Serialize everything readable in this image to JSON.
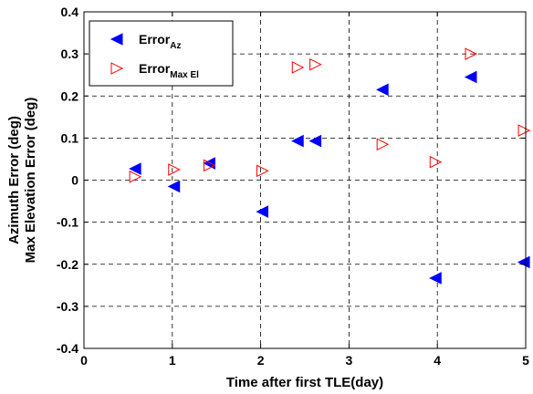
{
  "chart_data": {
    "type": "scatter",
    "xlabel": "Time after first TLE(day)",
    "ylabel_lines": [
      "Azimuth Error (deg)",
      "Max Elevation Error (deg)"
    ],
    "xlim": [
      0,
      5
    ],
    "ylim": [
      -0.4,
      0.4
    ],
    "x_ticks": [
      "0",
      "1",
      "2",
      "3",
      "4",
      "5"
    ],
    "y_ticks": [
      "-0.4",
      "-0.3",
      "-0.2",
      "-0.1",
      "0",
      "0.1",
      "0.2",
      "0.3",
      "0.4"
    ],
    "grid": true,
    "legend_position": "top-left",
    "series": [
      {
        "legend_main": "Error",
        "legend_sub": "Az",
        "marker": "filled-left-triangle",
        "color": "#0000ff",
        "x": [
          0.58,
          1.02,
          1.42,
          2.02,
          2.42,
          2.62,
          3.38,
          3.98,
          4.38,
          4.98
        ],
        "y": [
          0.027,
          -0.015,
          0.04,
          -0.075,
          0.093,
          0.093,
          0.215,
          -0.233,
          0.245,
          -0.195
        ]
      },
      {
        "legend_main": "Error",
        "legend_sub": "Max El",
        "marker": "open-right-triangle",
        "color": "#ff0000",
        "x": [
          0.58,
          1.02,
          1.42,
          2.02,
          2.42,
          2.62,
          3.38,
          3.98,
          4.38,
          4.98
        ],
        "y": [
          0.008,
          0.025,
          0.035,
          0.022,
          0.268,
          0.275,
          0.085,
          0.043,
          0.3,
          0.118
        ]
      }
    ]
  }
}
